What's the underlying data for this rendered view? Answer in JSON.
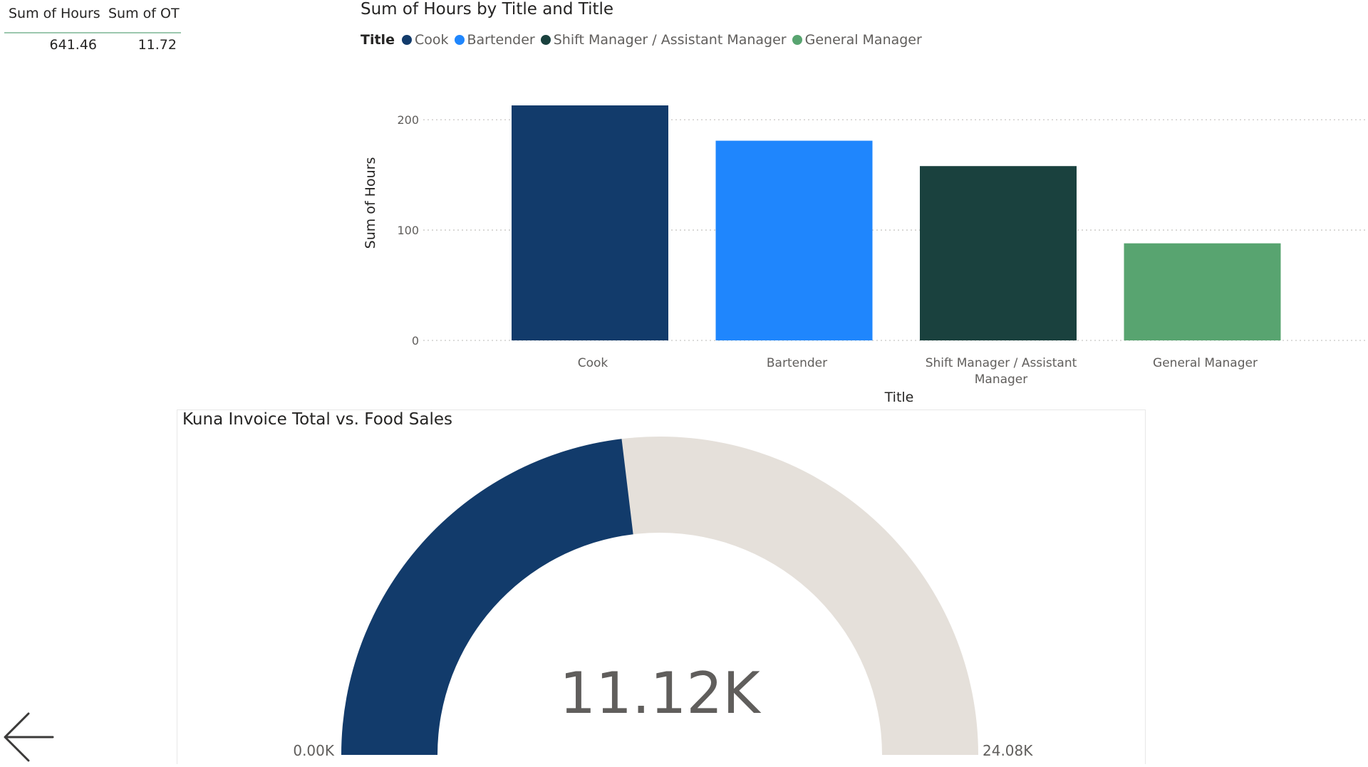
{
  "table": {
    "headers": [
      "Sum of Hours",
      "Sum of OT"
    ],
    "values": [
      "641.46",
      "11.72"
    ]
  },
  "bar_chart": {
    "title": "Sum of Hours by Title and Title",
    "legend_title": "Title",
    "legend": [
      {
        "label": "Cook",
        "color": "#123b6b"
      },
      {
        "label": "Bartender",
        "color": "#1f86fd"
      },
      {
        "label": "Shift Manager / Assistant Manager",
        "color": "#1a413e"
      },
      {
        "label": "General Manager",
        "color": "#58a470"
      }
    ]
  },
  "gauge": {
    "title": "Kuna Invoice Total vs. Food Sales",
    "value_label": "11.12K",
    "min_label": "0.00K",
    "max_label": "24.08K",
    "value": 11.12,
    "min": 0,
    "max": 24.08,
    "fill_color": "#123b6b",
    "track_color": "#e5e0da"
  },
  "navigation": {
    "back_icon": "arrow-left-icon"
  },
  "chart_data": [
    {
      "type": "bar",
      "title": "Sum of Hours by Title and Title",
      "xlabel": "Title",
      "ylabel": "Sum of Hours",
      "categories": [
        "Cook",
        "Bartender",
        "Shift Manager / Assistant Manager",
        "General Manager"
      ],
      "values": [
        213,
        181,
        158,
        88
      ],
      "colors": [
        "#123b6b",
        "#1f86fd",
        "#1a413e",
        "#58a470"
      ],
      "yticks": [
        0,
        100,
        200
      ],
      "ylim": [
        0,
        213
      ],
      "grid": true,
      "legend_position": "top-left"
    }
  ]
}
